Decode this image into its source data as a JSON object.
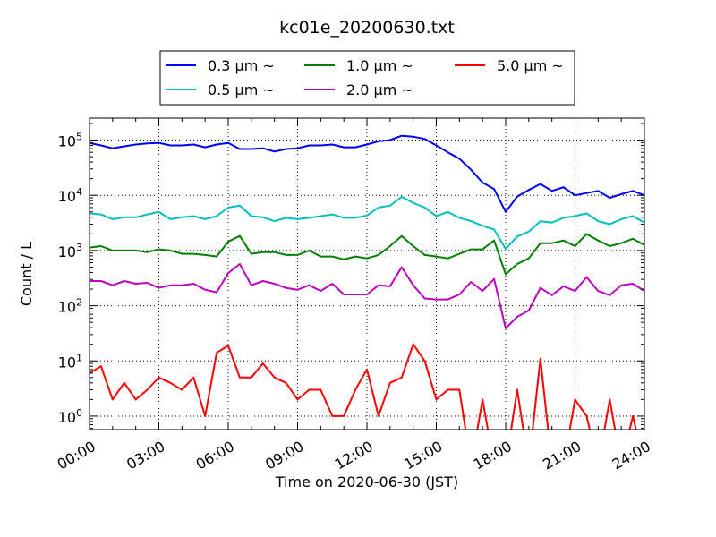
{
  "chart_data": {
    "type": "line",
    "title": "kc01e_20200630.txt",
    "xlabel": "Time on 2020-06-30 (JST)",
    "ylabel": "Count / L",
    "yscale": "log",
    "ylim": [
      0.57,
      250000
    ],
    "xlim_hours": [
      0,
      24
    ],
    "grid": true,
    "legend_placement": "top-center-outside",
    "x_tick_labels": [
      "00:00",
      "03:00",
      "06:00",
      "09:00",
      "12:00",
      "15:00",
      "18:00",
      "21:00",
      "24:00"
    ],
    "y_ticks": [
      {
        "base": "10",
        "exp": "0",
        "value": 1
      },
      {
        "base": "10",
        "exp": "1",
        "value": 10
      },
      {
        "base": "10",
        "exp": "2",
        "value": 100
      },
      {
        "base": "10",
        "exp": "3",
        "value": 1000
      },
      {
        "base": "10",
        "exp": "4",
        "value": 10000
      },
      {
        "base": "10",
        "exp": "5",
        "value": 100000
      }
    ],
    "x_hours": [
      0,
      0.5,
      1,
      1.5,
      2,
      2.5,
      3,
      3.5,
      4,
      4.5,
      5,
      5.5,
      6,
      6.5,
      7,
      7.5,
      8,
      8.5,
      9,
      9.5,
      10,
      10.5,
      11,
      11.5,
      12,
      12.5,
      13,
      13.5,
      14,
      14.5,
      15,
      15.5,
      16,
      16.5,
      17,
      17.5,
      18,
      18.5,
      19,
      19.5,
      20,
      20.5,
      21,
      21.5,
      22,
      22.5,
      23,
      23.5,
      24
    ],
    "series": [
      {
        "name": "0.3 µm ~",
        "color": "#0000ff",
        "values": [
          89000,
          80000,
          71000,
          77000,
          83000,
          87000,
          89000,
          80000,
          80000,
          83000,
          74000,
          83000,
          89000,
          69000,
          69000,
          71000,
          62000,
          69000,
          71000,
          80000,
          80000,
          83000,
          74000,
          74000,
          83000,
          95000,
          100000,
          120000,
          115000,
          105000,
          80000,
          60000,
          46000,
          29000,
          17000,
          13000,
          5000,
          9500,
          12500,
          16000,
          12000,
          14000,
          10000,
          11000,
          12000,
          9000,
          10500,
          12000,
          10000
        ]
      },
      {
        "name": "0.5 µm ~",
        "color": "#00bfbf",
        "values": [
          4700,
          4500,
          3700,
          4000,
          4000,
          4500,
          5000,
          3700,
          4000,
          4200,
          3700,
          4200,
          6000,
          6500,
          4200,
          4000,
          3400,
          3900,
          3700,
          3900,
          4200,
          4500,
          3900,
          3900,
          4300,
          6000,
          6500,
          9400,
          7300,
          6000,
          4200,
          5000,
          3900,
          3400,
          2800,
          2400,
          1070,
          1800,
          2200,
          3400,
          3200,
          3900,
          4200,
          4700,
          3400,
          3000,
          3700,
          4200,
          3200
        ]
      },
      {
        "name": "1.0 µm ~",
        "color": "#008000",
        "values": [
          1130,
          1200,
          1000,
          1000,
          1000,
          935,
          1050,
          1000,
          870,
          870,
          830,
          780,
          1450,
          1830,
          870,
          935,
          935,
          830,
          830,
          1000,
          780,
          780,
          690,
          780,
          720,
          830,
          1200,
          1830,
          1200,
          830,
          780,
          720,
          870,
          1050,
          1050,
          1520,
          370,
          570,
          720,
          1360,
          1360,
          1520,
          1200,
          1990,
          1520,
          1200,
          1360,
          1630,
          1260
        ]
      },
      {
        "name": "2.0 µm ~",
        "color": "#bf00bf",
        "values": [
          280,
          280,
          235,
          280,
          250,
          260,
          210,
          235,
          235,
          250,
          195,
          175,
          390,
          570,
          235,
          280,
          250,
          210,
          195,
          235,
          185,
          250,
          160,
          160,
          160,
          235,
          225,
          500,
          235,
          135,
          130,
          130,
          160,
          270,
          185,
          305,
          39,
          63,
          82,
          210,
          155,
          225,
          185,
          330,
          185,
          155,
          235,
          250,
          185
        ]
      },
      {
        "name": "5.0 µm ~",
        "color": "#ff0000",
        "values": [
          6,
          8,
          2,
          4,
          2,
          3,
          5,
          4,
          3,
          5,
          1,
          14,
          19,
          5,
          5,
          9,
          5,
          4,
          2,
          3,
          3,
          1,
          1,
          3,
          7,
          1,
          4,
          5,
          20,
          10,
          2,
          3,
          3,
          0,
          2,
          0,
          0,
          3,
          0,
          11,
          0,
          0,
          2,
          1,
          0,
          2,
          0,
          1,
          0
        ]
      }
    ]
  }
}
